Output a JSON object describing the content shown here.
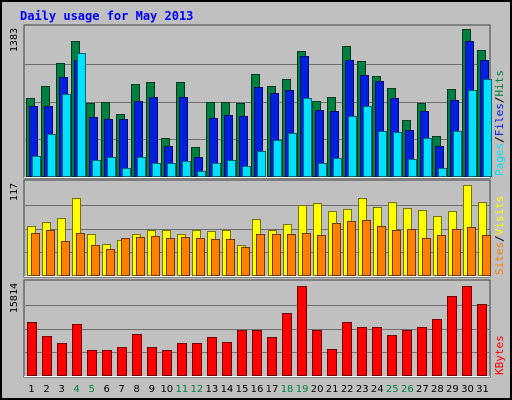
{
  "title": "Daily usage for May 2013",
  "chart_data": [
    {
      "type": "bar",
      "panel": "top",
      "max_label": "1383",
      "categories": [
        "1",
        "2",
        "3",
        "4",
        "5",
        "6",
        "7",
        "8",
        "9",
        "10",
        "11",
        "12",
        "13",
        "14",
        "15",
        "16",
        "17",
        "18",
        "19",
        "20",
        "21",
        "22",
        "23",
        "24",
        "25",
        "26",
        "27",
        "28",
        "29",
        "30",
        "31"
      ],
      "weekend_days": [
        "4",
        "5",
        "11",
        "12",
        "18",
        "19",
        "25",
        "26"
      ],
      "series": [
        {
          "name": "Hits",
          "color": "#008040",
          "values": [
            720,
            840,
            1050,
            1250,
            680,
            690,
            580,
            850,
            870,
            350,
            870,
            270,
            690,
            690,
            680,
            950,
            840,
            900,
            1160,
            700,
            730,
            1210,
            1070,
            930,
            820,
            520,
            680,
            370,
            810,
            1360,
            1170
          ]
        },
        {
          "name": "Files",
          "color": "#0020e0",
          "values": [
            650,
            650,
            920,
            1080,
            550,
            530,
            530,
            700,
            730,
            280,
            730,
            180,
            540,
            570,
            560,
            830,
            770,
            800,
            1110,
            610,
            600,
            1080,
            940,
            880,
            720,
            430,
            600,
            280,
            710,
            1250,
            1080
          ]
        },
        {
          "name": "Pages",
          "color": "#00e0ff",
          "values": [
            190,
            390,
            760,
            1140,
            150,
            180,
            70,
            180,
            120,
            120,
            140,
            50,
            120,
            150,
            90,
            230,
            330,
            400,
            720,
            120,
            170,
            560,
            650,
            420,
            410,
            160,
            350,
            70,
            420,
            800,
            900
          ]
        }
      ],
      "legend_labels": [
        "Pages",
        "Files",
        "Hits"
      ],
      "ylim": [
        0,
        1383
      ]
    },
    {
      "type": "bar",
      "panel": "middle",
      "max_label": "117",
      "series": [
        {
          "name": "Visits",
          "color": "#ffff00",
          "values": [
            62,
            67,
            72,
            97,
            51,
            39,
            44,
            52,
            57,
            57,
            51,
            57,
            55,
            57,
            38,
            71,
            57,
            64,
            88,
            91,
            81,
            83,
            97,
            86,
            92,
            84,
            82,
            74,
            80,
            113,
            92
          ]
        },
        {
          "name": "Sites",
          "color": "#ff8000",
          "values": [
            53,
            56,
            43,
            53,
            38,
            33,
            47,
            48,
            49,
            47,
            48,
            46,
            45,
            45,
            35,
            52,
            51,
            51,
            53,
            50,
            66,
            68,
            69,
            62,
            57,
            58,
            47,
            50,
            58,
            61,
            50
          ]
        }
      ],
      "legend_labels": [
        "Sites",
        "Visits"
      ],
      "ylim": [
        0,
        117
      ]
    },
    {
      "type": "bar",
      "panel": "bottom",
      "max_label": "15814",
      "series": [
        {
          "name": "KBytes",
          "color": "#ff0000",
          "values": [
            9000,
            6600,
            5400,
            8700,
            4300,
            4300,
            4700,
            7000,
            4700,
            4300,
            5400,
            5400,
            6400,
            5600,
            7700,
            7700,
            6500,
            10600,
            15200,
            7600,
            4500,
            9000,
            8100,
            8100,
            6800,
            7700,
            8100,
            9600,
            13400,
            15200,
            12000
          ]
        }
      ],
      "legend_labels": [
        "KBytes"
      ],
      "ylim": [
        0,
        15814
      ]
    }
  ]
}
